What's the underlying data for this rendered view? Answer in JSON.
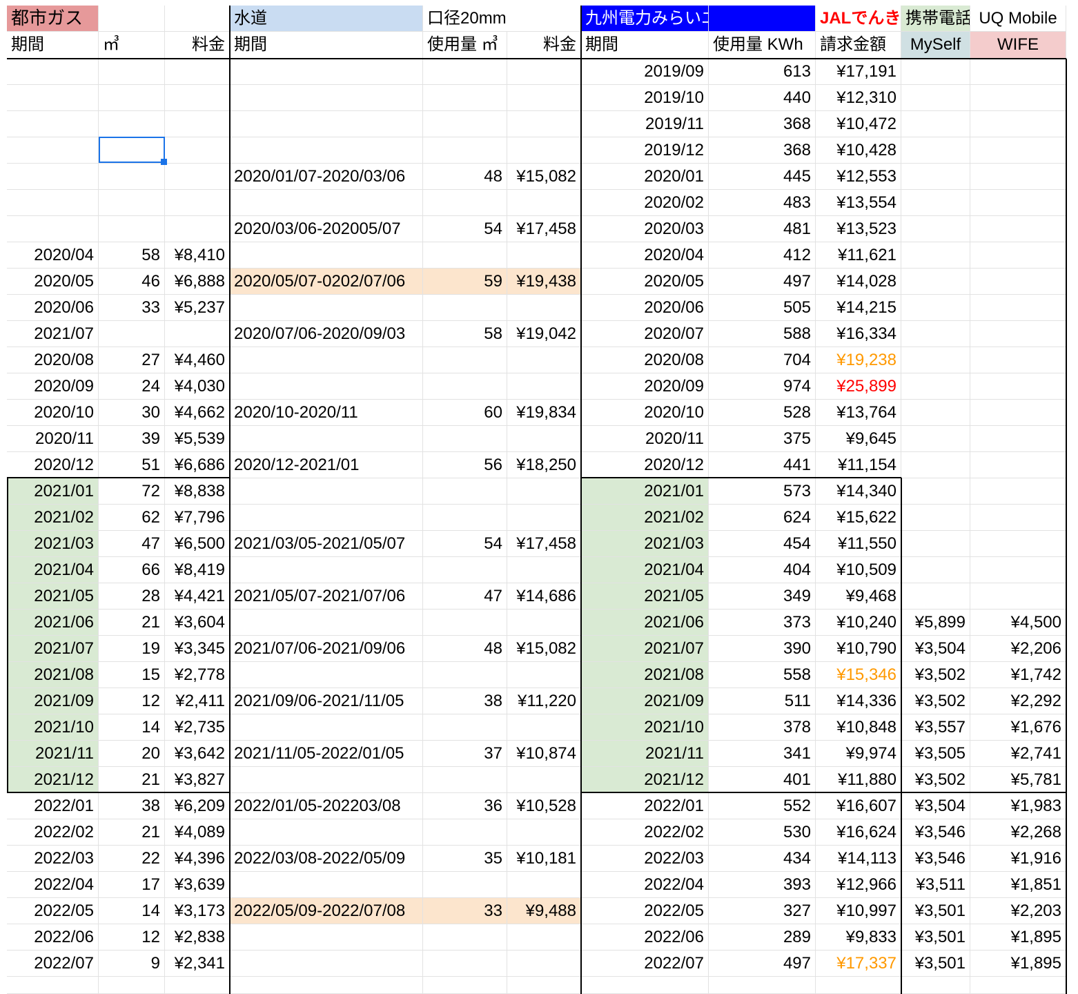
{
  "headers": {
    "gas_title": "都市ガス",
    "water_title": "水道",
    "water_caliber": "口径20mm",
    "elec_title": "九州電力みらいエナジー",
    "jal_title": "JALでんき",
    "phone_title": "携帯電話",
    "uq_title": "UQ Mobile",
    "gas_period": "期間",
    "gas_unit": "㎥",
    "gas_fee": "料金",
    "water_period": "期間",
    "water_usage": "使用量 ㎥",
    "water_fee": "料金",
    "elec_period": "期間",
    "elec_usage": "使用量 KWh",
    "elec_bill": "請求金額",
    "myself": "MySelf",
    "wife": "WIFE"
  },
  "colors": {
    "gas_header_bg": "#e6999a",
    "water_header_bg": "#c9dcf2",
    "elec_header_bg": "#0000ff",
    "elec_header_fg": "#ffffff",
    "jal_fg": "#ff0000",
    "phone_header_bg": "#d9ead3",
    "myself_bg": "#d0e0e3",
    "wife_bg": "#f4cccc",
    "green_bg": "#d9ead3",
    "peach_bg": "#fce5cd",
    "orange_fg": "#ff9900",
    "red_fg": "#ff0000"
  },
  "rows": [
    {
      "gp": "",
      "gm": "",
      "gf": "",
      "wp": "",
      "wu": "",
      "wf": "",
      "ep": "2019/09",
      "eu": "613",
      "eb": "¥17,191",
      "m": "",
      "w": ""
    },
    {
      "gp": "",
      "gm": "",
      "gf": "",
      "wp": "",
      "wu": "",
      "wf": "",
      "ep": "2019/10",
      "eu": "440",
      "eb": "¥12,310",
      "m": "",
      "w": ""
    },
    {
      "gp": "",
      "gm": "",
      "gf": "",
      "wp": "",
      "wu": "",
      "wf": "",
      "ep": "2019/11",
      "eu": "368",
      "eb": "¥10,472",
      "m": "",
      "w": ""
    },
    {
      "gp": "",
      "gm": "",
      "gf": "",
      "wp": "",
      "wu": "",
      "wf": "",
      "ep": "2019/12",
      "eu": "368",
      "eb": "¥10,428",
      "m": "",
      "w": ""
    },
    {
      "gp": "",
      "gm": "",
      "gf": "",
      "wp": "2020/01/07-2020/03/06",
      "wu": "48",
      "wf": "¥15,082",
      "ep": "2020/01",
      "eu": "445",
      "eb": "¥12,553",
      "m": "",
      "w": ""
    },
    {
      "gp": "",
      "gm": "",
      "gf": "",
      "wp": "",
      "wu": "",
      "wf": "",
      "ep": "2020/02",
      "eu": "483",
      "eb": "¥13,554",
      "m": "",
      "w": ""
    },
    {
      "gp": "",
      "gm": "",
      "gf": "",
      "wp": "2020/03/06-202005/07",
      "wu": "54",
      "wf": "¥17,458",
      "ep": "2020/03",
      "eu": "481",
      "eb": "¥13,523",
      "m": "",
      "w": ""
    },
    {
      "gp": "2020/04",
      "gm": "58",
      "gf": "¥8,410",
      "wp": "",
      "wu": "",
      "wf": "",
      "ep": "2020/04",
      "eu": "412",
      "eb": "¥11,621",
      "m": "",
      "w": ""
    },
    {
      "gp": "2020/05",
      "gm": "46",
      "gf": "¥6,888",
      "wp": "2020/05/07-0202/07/06",
      "wu": "59",
      "wf": "¥19,438",
      "ep": "2020/05",
      "eu": "497",
      "eb": "¥14,028",
      "m": "",
      "w": "",
      "water_hl": "peach"
    },
    {
      "gp": "2020/06",
      "gm": "33",
      "gf": "¥5,237",
      "wp": "",
      "wu": "",
      "wf": "",
      "ep": "2020/06",
      "eu": "505",
      "eb": "¥14,215",
      "m": "",
      "w": ""
    },
    {
      "gp": "2021/07",
      "gm": "",
      "gf": "",
      "wp": "2020/07/06-2020/09/03",
      "wu": "58",
      "wf": "¥19,042",
      "ep": "2020/07",
      "eu": "588",
      "eb": "¥16,334",
      "m": "",
      "w": ""
    },
    {
      "gp": "2020/08",
      "gm": "27",
      "gf": "¥4,460",
      "wp": "",
      "wu": "",
      "wf": "",
      "ep": "2020/08",
      "eu": "704",
      "eb": "¥19,238",
      "m": "",
      "w": "",
      "bill_color": "orange"
    },
    {
      "gp": "2020/09",
      "gm": "24",
      "gf": "¥4,030",
      "wp": "",
      "wu": "",
      "wf": "",
      "ep": "2020/09",
      "eu": "974",
      "eb": "¥25,899",
      "m": "",
      "w": "",
      "bill_color": "red"
    },
    {
      "gp": "2020/10",
      "gm": "30",
      "gf": "¥4,662",
      "wp": "2020/10-2020/11",
      "wu": "60",
      "wf": "¥19,834",
      "ep": "2020/10",
      "eu": "528",
      "eb": "¥13,764",
      "m": "",
      "w": ""
    },
    {
      "gp": "2020/11",
      "gm": "39",
      "gf": "¥5,539",
      "wp": "",
      "wu": "",
      "wf": "",
      "ep": "2020/11",
      "eu": "375",
      "eb": "¥9,645",
      "m": "",
      "w": ""
    },
    {
      "gp": "2020/12",
      "gm": "51",
      "gf": "¥6,686",
      "wp": "2020/12-2021/01",
      "wu": "56",
      "wf": "¥18,250",
      "ep": "2020/12",
      "eu": "441",
      "eb": "¥11,154",
      "m": "",
      "w": ""
    },
    {
      "gp": "2021/01",
      "gm": "72",
      "gf": "¥8,838",
      "wp": "",
      "wu": "",
      "wf": "",
      "ep": "2021/01",
      "eu": "573",
      "eb": "¥14,340",
      "m": "",
      "w": "",
      "green": true
    },
    {
      "gp": "2021/02",
      "gm": "62",
      "gf": "¥7,796",
      "wp": "",
      "wu": "",
      "wf": "",
      "ep": "2021/02",
      "eu": "624",
      "eb": "¥15,622",
      "m": "",
      "w": "",
      "green": true
    },
    {
      "gp": "2021/03",
      "gm": "47",
      "gf": "¥6,500",
      "wp": "2021/03/05-2021/05/07",
      "wu": "54",
      "wf": "¥17,458",
      "ep": "2021/03",
      "eu": "454",
      "eb": "¥11,550",
      "m": "",
      "w": "",
      "green": true
    },
    {
      "gp": "2021/04",
      "gm": "66",
      "gf": "¥8,419",
      "wp": "",
      "wu": "",
      "wf": "",
      "ep": "2021/04",
      "eu": "404",
      "eb": "¥10,509",
      "m": "",
      "w": "",
      "green": true
    },
    {
      "gp": "2021/05",
      "gm": "28",
      "gf": "¥4,421",
      "wp": "2021/05/07-2021/07/06",
      "wu": "47",
      "wf": "¥14,686",
      "ep": "2021/05",
      "eu": "349",
      "eb": "¥9,468",
      "m": "",
      "w": "",
      "green": true
    },
    {
      "gp": "2021/06",
      "gm": "21",
      "gf": "¥3,604",
      "wp": "",
      "wu": "",
      "wf": "",
      "ep": "2021/06",
      "eu": "373",
      "eb": "¥10,240",
      "m": "¥5,899",
      "w": "¥4,500",
      "green": true
    },
    {
      "gp": "2021/07",
      "gm": "19",
      "gf": "¥3,345",
      "wp": "2021/07/06-2021/09/06",
      "wu": "48",
      "wf": "¥15,082",
      "ep": "2021/07",
      "eu": "390",
      "eb": "¥10,790",
      "m": "¥3,504",
      "w": "¥2,206",
      "green": true
    },
    {
      "gp": "2021/08",
      "gm": "15",
      "gf": "¥2,778",
      "wp": "",
      "wu": "",
      "wf": "",
      "ep": "2021/08",
      "eu": "558",
      "eb": "¥15,346",
      "m": "¥3,502",
      "w": "¥1,742",
      "green": true,
      "bill_color": "orange"
    },
    {
      "gp": "2021/09",
      "gm": "12",
      "gf": "¥2,411",
      "wp": "2021/09/06-2021/11/05",
      "wu": "38",
      "wf": "¥11,220",
      "ep": "2021/09",
      "eu": "511",
      "eb": "¥14,336",
      "m": "¥3,502",
      "w": "¥2,292",
      "green": true
    },
    {
      "gp": "2021/10",
      "gm": "14",
      "gf": "¥2,735",
      "wp": "",
      "wu": "",
      "wf": "",
      "ep": "2021/10",
      "eu": "378",
      "eb": "¥10,848",
      "m": "¥3,557",
      "w": "¥1,676",
      "green": true
    },
    {
      "gp": "2021/11",
      "gm": "20",
      "gf": "¥3,642",
      "wp": "2021/11/05-2022/01/05",
      "wu": "37",
      "wf": "¥10,874",
      "ep": "2021/11",
      "eu": "341",
      "eb": "¥9,974",
      "m": "¥3,505",
      "w": "¥2,741",
      "green": true
    },
    {
      "gp": "2021/12",
      "gm": "21",
      "gf": "¥3,827",
      "wp": "",
      "wu": "",
      "wf": "",
      "ep": "2021/12",
      "eu": "401",
      "eb": "¥11,880",
      "m": "¥3,502",
      "w": "¥5,781",
      "green": true
    },
    {
      "gp": "2022/01",
      "gm": "38",
      "gf": "¥6,209",
      "wp": "2022/01/05-202203/08",
      "wu": "36",
      "wf": "¥10,528",
      "ep": "2022/01",
      "eu": "552",
      "eb": "¥16,607",
      "m": "¥3,504",
      "w": "¥1,983"
    },
    {
      "gp": "2022/02",
      "gm": "21",
      "gf": "¥4,089",
      "wp": "",
      "wu": "",
      "wf": "",
      "ep": "2022/02",
      "eu": "530",
      "eb": "¥16,624",
      "m": "¥3,546",
      "w": "¥2,268"
    },
    {
      "gp": "2022/03",
      "gm": "22",
      "gf": "¥4,396",
      "wp": "2022/03/08-2022/05/09",
      "wu": "35",
      "wf": "¥10,181",
      "ep": "2022/03",
      "eu": "434",
      "eb": "¥14,113",
      "m": "¥3,546",
      "w": "¥1,916"
    },
    {
      "gp": "2022/04",
      "gm": "17",
      "gf": "¥3,639",
      "wp": "",
      "wu": "",
      "wf": "",
      "ep": "2022/04",
      "eu": "393",
      "eb": "¥12,966",
      "m": "¥3,511",
      "w": "¥1,851"
    },
    {
      "gp": "2022/05",
      "gm": "14",
      "gf": "¥3,173",
      "wp": "2022/05/09-2022/07/08",
      "wu": "33",
      "wf": "¥9,488",
      "ep": "2022/05",
      "eu": "327",
      "eb": "¥10,997",
      "m": "¥3,501",
      "w": "¥2,203",
      "water_hl": "peach"
    },
    {
      "gp": "2022/06",
      "gm": "12",
      "gf": "¥2,838",
      "wp": "",
      "wu": "",
      "wf": "",
      "ep": "2022/06",
      "eu": "289",
      "eb": "¥9,833",
      "m": "¥3,501",
      "w": "¥1,895"
    },
    {
      "gp": "2022/07",
      "gm": "9",
      "gf": "¥2,341",
      "wp": "",
      "wu": "",
      "wf": "",
      "ep": "2022/07",
      "eu": "497",
      "eb": "¥17,337",
      "m": "¥3,501",
      "w": "¥1,895",
      "bill_color": "orange"
    }
  ]
}
